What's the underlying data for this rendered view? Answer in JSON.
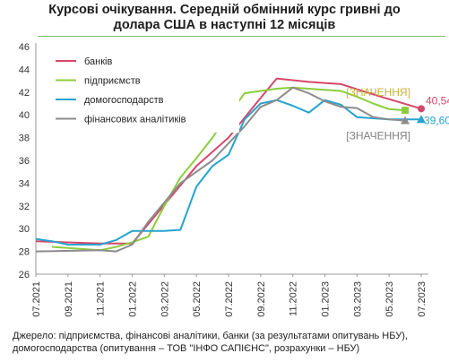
{
  "chart_data": {
    "type": "line",
    "title": "Курсові  очікування. Середній обмінний курс гривні до доларa США  в наступні  12 місяців",
    "title_lines": [
      "Курсові  очікування. Середній обмінний курс гривні до",
      "доларa США  в наступні  12 місяців"
    ],
    "ylim": [
      26,
      46
    ],
    "y_ticks": [
      26,
      28,
      30,
      32,
      34,
      36,
      38,
      40,
      42,
      44,
      46
    ],
    "x_ticks": [
      "07.2021",
      "09.2021",
      "11.2021",
      "01.2022",
      "03.2022",
      "05.2022",
      "07.2022",
      "09.2022",
      "11.2022",
      "01.2023",
      "03.2023",
      "05.2023",
      "07.2023"
    ],
    "grid": false,
    "legend_position": "top-left",
    "series": [
      {
        "name": "банків",
        "color": "#d6476b",
        "x": [
          "2021-07",
          "2021-11",
          "2022-01",
          "2022-05",
          "2022-07",
          "2022-09",
          "2022-10",
          "2022-12",
          "2023-02",
          "2023-04",
          "2023-07"
        ],
        "values": [
          28.9,
          28.7,
          28.7,
          35.5,
          38.0,
          41.5,
          43.2,
          42.9,
          42.7,
          41.8,
          40.54
        ],
        "end_label": "40,54",
        "end_marker": "circle"
      },
      {
        "name": "підприємств",
        "color": "#8ccd3c",
        "x": [
          "2021-08",
          "2021-11",
          "2021-12",
          "2022-01",
          "2022-02",
          "2022-03",
          "2022-04",
          "2022-05",
          "2022-06",
          "2022-07",
          "2022-08",
          "2022-09",
          "2022-10",
          "2022-11",
          "2022-12",
          "2023-01",
          "2023-02",
          "2023-03",
          "2023-04",
          "2023-05",
          "2023-06"
        ],
        "values": [
          28.4,
          28.1,
          28.4,
          28.8,
          29.3,
          32.0,
          34.5,
          36.2,
          38.0,
          40.0,
          41.9,
          42.1,
          42.3,
          42.4,
          42.3,
          42.2,
          42.1,
          41.6,
          41.0,
          40.5,
          40.4
        ],
        "end_label": "[ЗНАЧЕННЯ]",
        "end_marker": "square"
      },
      {
        "name": "домогосподарств",
        "color": "#26a3cf",
        "x": [
          "2021-07",
          "2021-08",
          "2021-09",
          "2021-10",
          "2021-11",
          "2021-12",
          "2022-01",
          "2022-02",
          "2022-03",
          "2022-04",
          "2022-05",
          "2022-06",
          "2022-07",
          "2022-08",
          "2022-09",
          "2022-10",
          "2022-11",
          "2022-12",
          "2023-01",
          "2023-02",
          "2023-03",
          "2023-04",
          "2023-05",
          "2023-06",
          "2023-07"
        ],
        "values": [
          29.1,
          28.9,
          28.6,
          28.6,
          28.6,
          29.0,
          29.8,
          29.8,
          29.8,
          29.9,
          33.7,
          35.5,
          36.5,
          39.6,
          41.0,
          41.3,
          40.8,
          40.2,
          41.3,
          40.9,
          39.8,
          39.7,
          39.6,
          39.6,
          39.6
        ],
        "end_label": "39,60",
        "end_marker": "triangle"
      },
      {
        "name": "фінансових  аналітиків",
        "color": "#8c8c8c",
        "x": [
          "2021-07",
          "2021-11",
          "2021-12",
          "2022-01",
          "2022-02",
          "2022-04",
          "2022-06",
          "2022-07",
          "2022-08",
          "2022-09",
          "2022-10",
          "2022-11",
          "2022-12",
          "2023-01",
          "2023-02",
          "2023-03",
          "2023-04",
          "2023-05",
          "2023-06"
        ],
        "values": [
          28.0,
          28.1,
          28.0,
          28.6,
          30.6,
          34.0,
          36.0,
          37.5,
          39.0,
          40.7,
          41.3,
          42.4,
          41.9,
          41.2,
          40.7,
          40.6,
          39.8,
          39.6,
          39.5
        ],
        "end_label": "[ЗНАЧЕННЯ]",
        "end_marker": "triangle"
      }
    ]
  },
  "source": {
    "line1": "Джерело: підприємства, фінансові аналітики, банки (за результатами опитувань НБУ),",
    "line2": "домогосподарства (опитування – ТОВ \"ІНФО САПІЄНС\", розрахунки – НБУ)"
  }
}
